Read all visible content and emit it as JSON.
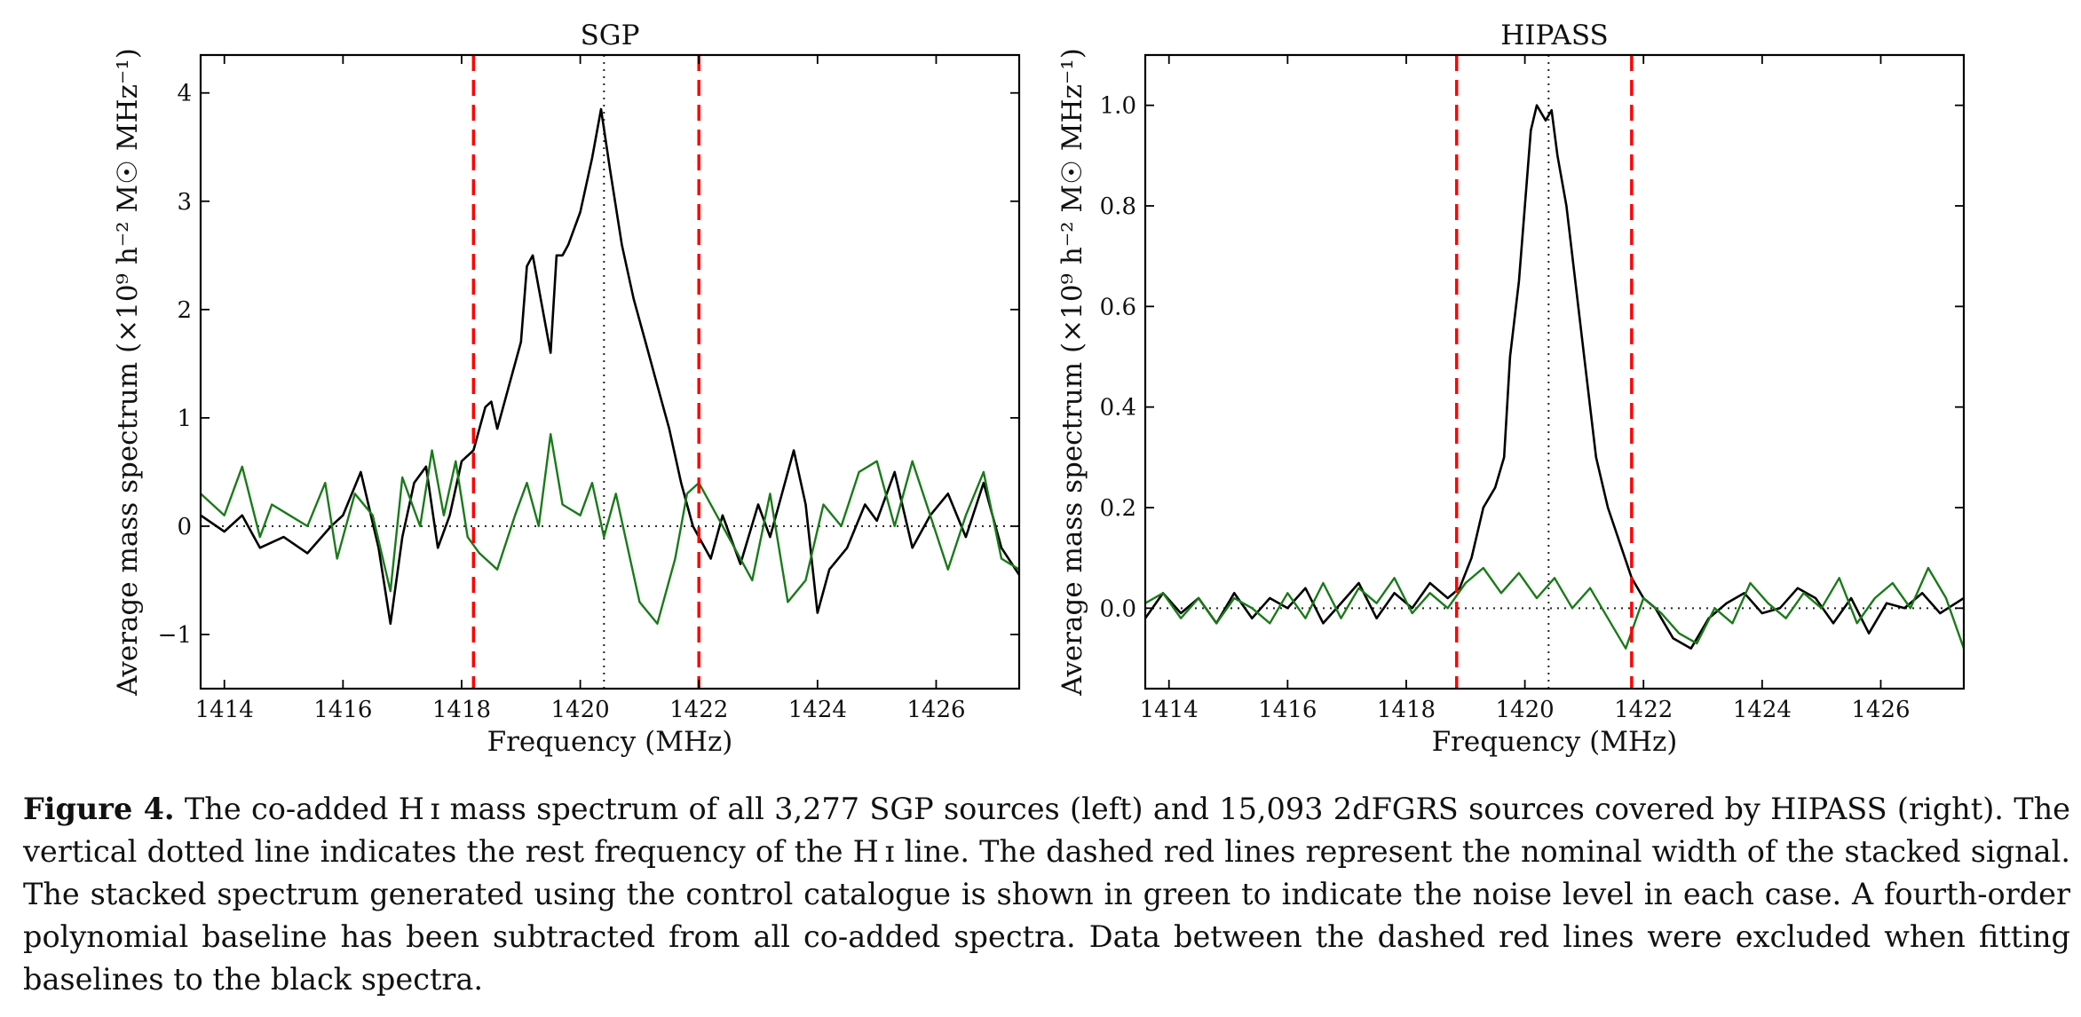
{
  "colors": {
    "stack": "#000000",
    "control": "#1a7a1a",
    "width_lines": "#ff0000",
    "guides": "#333333"
  },
  "chart_data": [
    {
      "type": "line",
      "title": "SGP",
      "xlabel": "Frequency (MHz)",
      "ylabel": "Average mass spectrum (×10⁹ h⁻² M☉ MHz⁻¹)",
      "xlim": [
        1413.6,
        1427.4
      ],
      "ylim": [
        -1.5,
        4.35
      ],
      "xticks": [
        1414,
        1416,
        1418,
        1420,
        1422,
        1424,
        1426
      ],
      "xtick_labels": [
        "1414",
        "1416",
        "1418",
        "1420",
        "1422",
        "1424",
        "1426"
      ],
      "yticks": [
        -1,
        0,
        1,
        2,
        3,
        4
      ],
      "ytick_labels": [
        "−1",
        "0",
        "1",
        "2",
        "3",
        "4"
      ],
      "rest_frequency": 1420.4,
      "width_lines": [
        1418.2,
        1422.0
      ],
      "zero_line": 0,
      "series": [
        {
          "color": "#000000",
          "x": [
            1413.6,
            1414.0,
            1414.3,
            1414.6,
            1415.0,
            1415.4,
            1415.8,
            1416.0,
            1416.3,
            1416.6,
            1416.8,
            1417.0,
            1417.2,
            1417.4,
            1417.6,
            1417.8,
            1418.0,
            1418.2,
            1418.4,
            1418.5,
            1418.6,
            1418.8,
            1419.0,
            1419.1,
            1419.2,
            1419.3,
            1419.5,
            1419.6,
            1419.7,
            1419.8,
            1420.0,
            1420.2,
            1420.35,
            1420.5,
            1420.7,
            1420.9,
            1421.1,
            1421.3,
            1421.5,
            1421.7,
            1421.9,
            1422.0,
            1422.2,
            1422.4,
            1422.7,
            1423.0,
            1423.2,
            1423.4,
            1423.6,
            1423.8,
            1424.0,
            1424.2,
            1424.5,
            1424.8,
            1425.0,
            1425.3,
            1425.6,
            1425.9,
            1426.2,
            1426.5,
            1426.8,
            1427.1,
            1427.4
          ],
          "values": [
            0.1,
            -0.05,
            0.1,
            -0.2,
            -0.1,
            -0.25,
            0.0,
            0.1,
            0.5,
            -0.2,
            -0.9,
            -0.1,
            0.4,
            0.55,
            -0.2,
            0.1,
            0.6,
            0.7,
            1.1,
            1.15,
            0.9,
            1.3,
            1.7,
            2.4,
            2.5,
            2.2,
            1.6,
            2.5,
            2.5,
            2.6,
            2.9,
            3.4,
            3.85,
            3.3,
            2.6,
            2.1,
            1.7,
            1.3,
            0.9,
            0.4,
            0.0,
            -0.1,
            -0.3,
            0.1,
            -0.35,
            0.2,
            -0.1,
            0.3,
            0.7,
            0.2,
            -0.8,
            -0.4,
            -0.2,
            0.2,
            0.05,
            0.5,
            -0.2,
            0.1,
            0.3,
            -0.1,
            0.4,
            -0.2,
            -0.45
          ]
        },
        {
          "color": "#1a7a1a",
          "x": [
            1413.6,
            1414.0,
            1414.3,
            1414.6,
            1414.8,
            1415.1,
            1415.4,
            1415.7,
            1415.9,
            1416.2,
            1416.5,
            1416.8,
            1417.0,
            1417.3,
            1417.5,
            1417.7,
            1417.9,
            1418.1,
            1418.3,
            1418.6,
            1418.9,
            1419.1,
            1419.3,
            1419.5,
            1419.7,
            1420.0,
            1420.2,
            1420.4,
            1420.6,
            1420.8,
            1421.0,
            1421.3,
            1421.6,
            1421.8,
            1422.0,
            1422.3,
            1422.6,
            1422.9,
            1423.2,
            1423.5,
            1423.8,
            1424.1,
            1424.4,
            1424.7,
            1425.0,
            1425.3,
            1425.6,
            1425.9,
            1426.2,
            1426.5,
            1426.8,
            1427.1,
            1427.4
          ],
          "values": [
            0.3,
            0.1,
            0.55,
            -0.1,
            0.2,
            0.1,
            0.0,
            0.4,
            -0.3,
            0.3,
            0.1,
            -0.6,
            0.45,
            0.0,
            0.7,
            0.1,
            0.6,
            -0.1,
            -0.25,
            -0.4,
            0.1,
            0.4,
            0.0,
            0.85,
            0.2,
            0.1,
            0.4,
            -0.1,
            0.3,
            -0.2,
            -0.7,
            -0.9,
            -0.3,
            0.3,
            0.4,
            0.1,
            -0.2,
            -0.5,
            0.3,
            -0.7,
            -0.5,
            0.2,
            0.0,
            0.5,
            0.6,
            0.0,
            0.6,
            0.1,
            -0.4,
            0.1,
            0.5,
            -0.3,
            -0.4
          ]
        }
      ]
    },
    {
      "type": "line",
      "title": "HIPASS",
      "xlabel": "Frequency (MHz)",
      "ylabel": "Average mass spectrum (×10⁹ h⁻² M☉ MHz⁻¹)",
      "xlim": [
        1413.6,
        1427.4
      ],
      "ylim": [
        -0.16,
        1.1
      ],
      "xticks": [
        1414,
        1416,
        1418,
        1420,
        1422,
        1424,
        1426
      ],
      "xtick_labels": [
        "1414",
        "1416",
        "1418",
        "1420",
        "1422",
        "1424",
        "1426"
      ],
      "yticks": [
        0.0,
        0.2,
        0.4,
        0.6,
        0.8,
        1.0
      ],
      "ytick_labels": [
        "0.0",
        "0.2",
        "0.4",
        "0.6",
        "0.8",
        "1.0"
      ],
      "rest_frequency": 1420.4,
      "width_lines": [
        1418.85,
        1421.8
      ],
      "zero_line": 0,
      "series": [
        {
          "color": "#000000",
          "x": [
            1413.6,
            1413.9,
            1414.2,
            1414.5,
            1414.8,
            1415.1,
            1415.4,
            1415.7,
            1416.0,
            1416.3,
            1416.6,
            1416.9,
            1417.2,
            1417.5,
            1417.8,
            1418.1,
            1418.4,
            1418.7,
            1418.9,
            1419.1,
            1419.3,
            1419.5,
            1419.65,
            1419.75,
            1419.9,
            1420.0,
            1420.1,
            1420.2,
            1420.35,
            1420.45,
            1420.55,
            1420.7,
            1420.85,
            1421.0,
            1421.2,
            1421.4,
            1421.6,
            1421.8,
            1422.0,
            1422.2,
            1422.5,
            1422.8,
            1423.1,
            1423.4,
            1423.7,
            1424.0,
            1424.3,
            1424.6,
            1424.9,
            1425.2,
            1425.5,
            1425.8,
            1426.1,
            1426.4,
            1426.7,
            1427.0,
            1427.4
          ],
          "values": [
            -0.02,
            0.03,
            -0.01,
            0.02,
            -0.03,
            0.03,
            -0.02,
            0.02,
            0.0,
            0.04,
            -0.03,
            0.01,
            0.05,
            -0.02,
            0.03,
            0.0,
            0.05,
            0.02,
            0.04,
            0.1,
            0.2,
            0.24,
            0.3,
            0.5,
            0.65,
            0.8,
            0.95,
            1.0,
            0.97,
            0.99,
            0.9,
            0.8,
            0.65,
            0.5,
            0.3,
            0.2,
            0.13,
            0.06,
            0.02,
            0.0,
            -0.06,
            -0.08,
            -0.02,
            0.01,
            0.03,
            -0.01,
            0.0,
            0.04,
            0.02,
            -0.03,
            0.02,
            -0.05,
            0.01,
            0.0,
            0.03,
            -0.01,
            0.02
          ]
        },
        {
          "color": "#1a7a1a",
          "x": [
            1413.6,
            1413.9,
            1414.2,
            1414.5,
            1414.8,
            1415.1,
            1415.4,
            1415.7,
            1416.0,
            1416.3,
            1416.6,
            1416.9,
            1417.2,
            1417.5,
            1417.8,
            1418.1,
            1418.4,
            1418.7,
            1419.0,
            1419.3,
            1419.6,
            1419.9,
            1420.2,
            1420.5,
            1420.8,
            1421.1,
            1421.4,
            1421.7,
            1422.0,
            1422.3,
            1422.6,
            1422.9,
            1423.2,
            1423.5,
            1423.8,
            1424.1,
            1424.4,
            1424.7,
            1425.0,
            1425.3,
            1425.6,
            1425.9,
            1426.2,
            1426.5,
            1426.8,
            1427.1,
            1427.4
          ],
          "values": [
            0.01,
            0.03,
            -0.02,
            0.02,
            -0.03,
            0.02,
            0.0,
            -0.03,
            0.03,
            -0.02,
            0.05,
            -0.02,
            0.04,
            0.01,
            0.06,
            -0.01,
            0.03,
            0.0,
            0.05,
            0.08,
            0.03,
            0.07,
            0.02,
            0.06,
            0.0,
            0.04,
            -0.02,
            -0.08,
            0.02,
            -0.01,
            -0.05,
            -0.07,
            0.0,
            -0.03,
            0.05,
            0.01,
            -0.02,
            0.03,
            0.0,
            0.06,
            -0.03,
            0.02,
            0.05,
            0.0,
            0.08,
            0.02,
            -0.08
          ]
        }
      ]
    }
  ],
  "caption": {
    "label": "Figure 4.",
    "text": "The co-added H ɪ mass spectrum of all 3,277 SGP sources (left) and 15,093 2dFGRS sources covered by HIPASS (right). The vertical dotted line indicates the rest frequency of the H ɪ line. The dashed red lines represent the nominal width of the stacked signal. The stacked spectrum generated using the control catalogue is shown in green to indicate the noise level in each case. A fourth-order polynomial baseline has been subtracted from all co-added spectra. Data between the dashed red lines were excluded when fitting baselines to the black spectra."
  }
}
